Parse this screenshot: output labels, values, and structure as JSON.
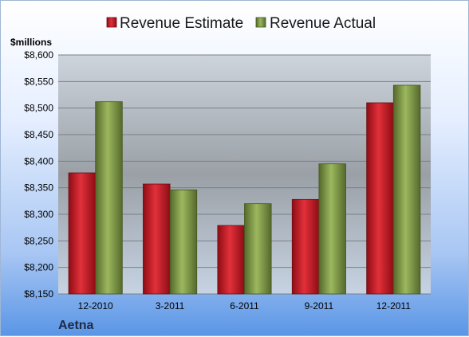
{
  "chart_data": {
    "type": "bar",
    "categories": [
      "12-2010",
      "3-2011",
      "6-2011",
      "9-2011",
      "12-2011"
    ],
    "series": [
      {
        "name": "Revenue Estimate",
        "values": [
          8378,
          8357,
          8279,
          8328,
          8510
        ]
      },
      {
        "name": "Revenue Actual",
        "values": [
          8512,
          8346,
          8320,
          8395,
          8543
        ]
      }
    ],
    "ylabel": "$millions",
    "ylim": [
      8150,
      8600
    ],
    "yticks": [
      "$8,150",
      "$8,200",
      "$8,250",
      "$8,300",
      "$8,350",
      "$8,400",
      "$8,450",
      "$8,500",
      "$8,550",
      "$8,600"
    ],
    "grid": true,
    "legend_position": "top",
    "footer": "Aetna",
    "colors": {
      "estimate": "#c8141e",
      "actual": "#7f9a45"
    }
  }
}
